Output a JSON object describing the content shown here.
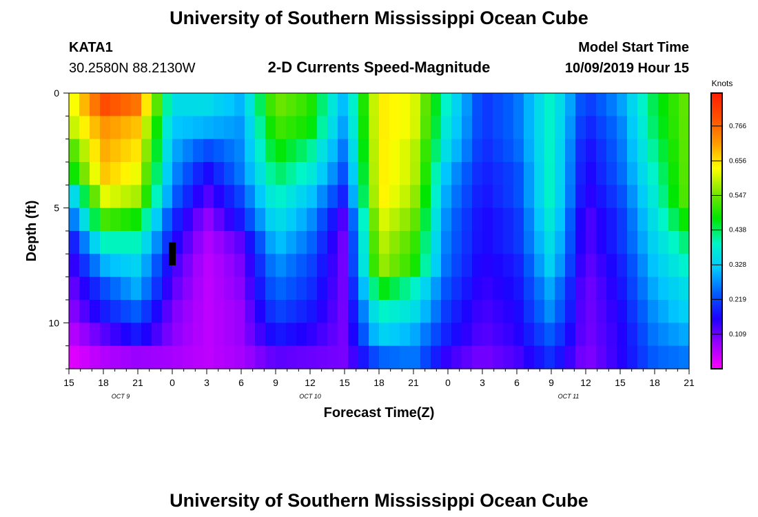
{
  "header": {
    "title": "University of Southern Mississippi Ocean Cube",
    "station_id": "KATA1",
    "coordinates": "30.2580N 88.2130W",
    "subtitle": "2-D Currents Speed-Magnitude",
    "model_start_label": "Model Start Time",
    "model_start_value": "10/09/2019 Hour 15"
  },
  "footer": {
    "title": "University of Southern Mississippi Ocean Cube"
  },
  "chart_data": {
    "type": "heatmap",
    "title": "2-D Currents Speed-Magnitude",
    "xlabel": "Forecast Time(Z)",
    "ylabel": "Depth (ft)",
    "x_unit": "forecast hours from 10/09/2019 15Z",
    "xlim": [
      0,
      54
    ],
    "ylim": [
      0,
      12
    ],
    "y_inverted": true,
    "x_ticks": [
      {
        "hour": 0,
        "label": "15"
      },
      {
        "hour": 3,
        "label": "18"
      },
      {
        "hour": 6,
        "label": "21"
      },
      {
        "hour": 9,
        "label": "0"
      },
      {
        "hour": 12,
        "label": "3"
      },
      {
        "hour": 15,
        "label": "6"
      },
      {
        "hour": 18,
        "label": "9"
      },
      {
        "hour": 21,
        "label": "12"
      },
      {
        "hour": 24,
        "label": "15"
      },
      {
        "hour": 27,
        "label": "18"
      },
      {
        "hour": 30,
        "label": "21"
      },
      {
        "hour": 33,
        "label": "0"
      },
      {
        "hour": 36,
        "label": "3"
      },
      {
        "hour": 39,
        "label": "6"
      },
      {
        "hour": 42,
        "label": "9"
      },
      {
        "hour": 45,
        "label": "12"
      },
      {
        "hour": 48,
        "label": "15"
      },
      {
        "hour": 51,
        "label": "18"
      },
      {
        "hour": 54,
        "label": "21"
      }
    ],
    "date_labels": [
      {
        "hour": 4.5,
        "label": "OCT 9"
      },
      {
        "hour": 21,
        "label": "OCT 10"
      },
      {
        "hour": 43.5,
        "label": "OCT 11"
      }
    ],
    "y_ticks": [
      {
        "depth": 0,
        "label": "0"
      },
      {
        "depth": 5,
        "label": "5"
      },
      {
        "depth": 10,
        "label": "10"
      }
    ],
    "colorbar": {
      "title": "Knots",
      "range": [
        0,
        0.87
      ],
      "ticks": [
        "0.766",
        "0.656",
        "0.547",
        "0.438",
        "0.328",
        "0.219",
        "0.109"
      ],
      "tick_values": [
        0.766,
        0.656,
        0.547,
        0.438,
        0.328,
        0.219,
        0.109
      ],
      "colors": [
        "#ff00ff",
        "#9a00ff",
        "#1e00ff",
        "#005cff",
        "#00c8ff",
        "#00f5c8",
        "#00e600",
        "#7ae600",
        "#ffff00",
        "#ff9b00",
        "#ff5000",
        "#ff1e00"
      ]
    },
    "depth_rows": [
      0.5,
      1.5,
      2.5,
      3.5,
      4.5,
      5.5,
      6.5,
      7.5,
      8.5,
      9.5,
      10.5,
      11.5
    ],
    "time_nodes": [
      0,
      3,
      6,
      9,
      12,
      15,
      18,
      21,
      24,
      27,
      30,
      33,
      36,
      39,
      42,
      45,
      48,
      51,
      54
    ],
    "speed_knots": [
      [
        0.6,
        0.8,
        0.75,
        0.35,
        0.35,
        0.3,
        0.55,
        0.5,
        0.3,
        0.65,
        0.62,
        0.38,
        0.2,
        0.25,
        0.4,
        0.2,
        0.28,
        0.45,
        0.55
      ],
      [
        0.58,
        0.72,
        0.68,
        0.32,
        0.3,
        0.28,
        0.52,
        0.48,
        0.28,
        0.65,
        0.62,
        0.36,
        0.2,
        0.25,
        0.4,
        0.18,
        0.26,
        0.44,
        0.55
      ],
      [
        0.5,
        0.7,
        0.65,
        0.3,
        0.22,
        0.27,
        0.48,
        0.42,
        0.25,
        0.65,
        0.6,
        0.34,
        0.19,
        0.24,
        0.4,
        0.16,
        0.25,
        0.42,
        0.55
      ],
      [
        0.45,
        0.68,
        0.62,
        0.28,
        0.16,
        0.26,
        0.44,
        0.38,
        0.22,
        0.65,
        0.6,
        0.3,
        0.18,
        0.22,
        0.4,
        0.15,
        0.24,
        0.4,
        0.55
      ],
      [
        0.3,
        0.62,
        0.58,
        0.25,
        0.12,
        0.22,
        0.4,
        0.32,
        0.18,
        0.65,
        0.58,
        0.28,
        0.17,
        0.22,
        0.4,
        0.14,
        0.22,
        0.38,
        0.55
      ],
      [
        0.22,
        0.52,
        0.48,
        0.2,
        0.08,
        0.18,
        0.36,
        0.28,
        0.12,
        0.62,
        0.55,
        0.26,
        0.16,
        0.2,
        0.38,
        0.12,
        0.2,
        0.36,
        0.5
      ],
      [
        0.15,
        0.4,
        0.4,
        0.17,
        0.06,
        0.12,
        0.32,
        0.25,
        0.1,
        0.6,
        0.52,
        0.25,
        0.16,
        0.2,
        0.36,
        0.12,
        0.2,
        0.34,
        0.44
      ],
      [
        0.12,
        0.3,
        0.34,
        0.14,
        0.05,
        0.1,
        0.28,
        0.22,
        0.1,
        0.58,
        0.5,
        0.24,
        0.15,
        0.18,
        0.34,
        0.11,
        0.18,
        0.32,
        0.4
      ],
      [
        0.1,
        0.22,
        0.3,
        0.12,
        0.05,
        0.09,
        0.25,
        0.2,
        0.1,
        0.48,
        0.4,
        0.22,
        0.14,
        0.17,
        0.3,
        0.1,
        0.17,
        0.3,
        0.36
      ],
      [
        0.08,
        0.18,
        0.24,
        0.1,
        0.05,
        0.08,
        0.22,
        0.18,
        0.1,
        0.4,
        0.36,
        0.2,
        0.13,
        0.16,
        0.28,
        0.1,
        0.16,
        0.28,
        0.34
      ],
      [
        0.05,
        0.12,
        0.18,
        0.09,
        0.05,
        0.08,
        0.18,
        0.15,
        0.1,
        0.34,
        0.3,
        0.18,
        0.12,
        0.15,
        0.24,
        0.1,
        0.15,
        0.26,
        0.3
      ],
      [
        0.02,
        0.06,
        0.08,
        0.07,
        0.05,
        0.07,
        0.12,
        0.11,
        0.1,
        0.24,
        0.26,
        0.14,
        0.1,
        0.13,
        0.2,
        0.09,
        0.15,
        0.24,
        0.26
      ]
    ],
    "missing_data_marks": [
      {
        "hour_start": 8.7,
        "hour_end": 9.3,
        "depth_start": 6.5,
        "depth_end": 7.5
      }
    ]
  }
}
